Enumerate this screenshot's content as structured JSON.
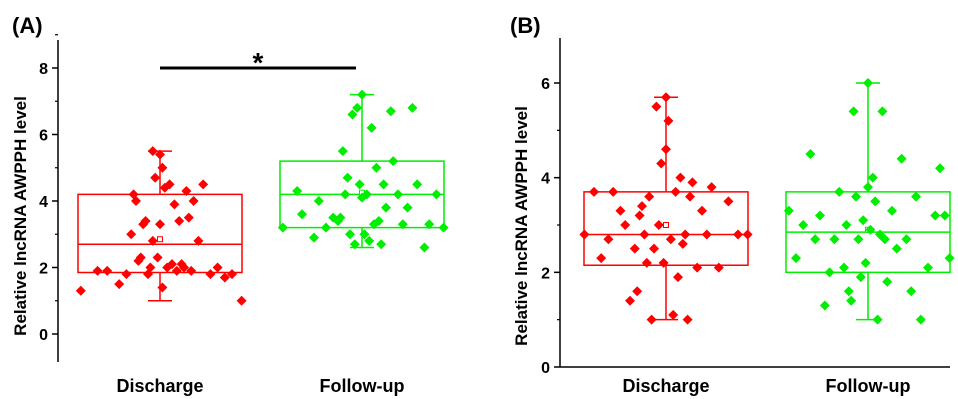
{
  "chart_data": [
    {
      "type": "box",
      "panel_label": "(A)",
      "title": "",
      "xlabel": "",
      "ylabel": "Relative lncRNA AWPPH level",
      "ylim": [
        -0.6,
        9
      ],
      "yticks": [
        0,
        2,
        4,
        6,
        8
      ],
      "categories": [
        "Discharge",
        "Follow-up"
      ],
      "significance": {
        "between": [
          0,
          1
        ],
        "y": 8.0,
        "label": "*"
      },
      "series": [
        {
          "category": "Discharge",
          "color": "#ff0000",
          "box": {
            "min": 1.0,
            "q1": 1.85,
            "median": 2.7,
            "q3": 4.2,
            "max": 5.5,
            "mean": 2.85
          },
          "points": [
            [
              -0.33,
              1.3
            ],
            [
              -0.26,
              1.9
            ],
            [
              -0.22,
              1.9
            ],
            [
              -0.17,
              1.5
            ],
            [
              -0.14,
              1.8
            ],
            [
              -0.12,
              3.0
            ],
            [
              -0.11,
              4.2
            ],
            [
              -0.1,
              4.0
            ],
            [
              -0.09,
              2.2
            ],
            [
              -0.08,
              2.3
            ],
            [
              -0.07,
              3.3
            ],
            [
              -0.06,
              3.4
            ],
            [
              -0.05,
              1.8
            ],
            [
              -0.04,
              2.0
            ],
            [
              -0.03,
              5.5
            ],
            [
              -0.02,
              4.7
            ],
            [
              -0.01,
              2.3
            ],
            [
              0.0,
              5.4
            ],
            [
              0.0,
              3.3
            ],
            [
              0.01,
              1.4
            ],
            [
              0.02,
              4.4
            ],
            [
              0.03,
              2.0
            ],
            [
              0.04,
              4.5
            ],
            [
              0.05,
              2.1
            ],
            [
              0.06,
              3.9
            ],
            [
              0.07,
              1.9
            ],
            [
              0.08,
              3.4
            ],
            [
              0.09,
              2.1
            ],
            [
              0.1,
              2.0
            ],
            [
              0.11,
              4.3
            ],
            [
              0.12,
              3.5
            ],
            [
              0.13,
              1.9
            ],
            [
              0.14,
              4.0
            ],
            [
              0.16,
              2.8
            ],
            [
              0.18,
              4.5
            ],
            [
              0.21,
              1.8
            ],
            [
              0.24,
              2.0
            ],
            [
              0.27,
              1.7
            ],
            [
              0.3,
              1.8
            ],
            [
              0.34,
              1.0
            ],
            [
              -0.03,
              2.8
            ],
            [
              0.01,
              5.0
            ]
          ]
        },
        {
          "category": "Follow-up",
          "color": "#00ee00",
          "box": {
            "min": 2.6,
            "q1": 3.2,
            "median": 4.2,
            "q3": 5.2,
            "max": 7.2,
            "mean": 4.25
          },
          "points": [
            [
              -0.33,
              3.2
            ],
            [
              -0.27,
              4.3
            ],
            [
              -0.25,
              3.6
            ],
            [
              -0.2,
              2.9
            ],
            [
              -0.18,
              4.0
            ],
            [
              -0.15,
              3.2
            ],
            [
              -0.12,
              3.5
            ],
            [
              -0.1,
              3.4
            ],
            [
              -0.08,
              5.5
            ],
            [
              -0.07,
              4.2
            ],
            [
              -0.06,
              4.7
            ],
            [
              -0.05,
              3.0
            ],
            [
              -0.04,
              6.6
            ],
            [
              -0.03,
              2.7
            ],
            [
              -0.02,
              6.8
            ],
            [
              -0.01,
              4.5
            ],
            [
              0.0,
              7.2
            ],
            [
              0.0,
              4.1
            ],
            [
              0.01,
              3.0
            ],
            [
              0.02,
              4.2
            ],
            [
              0.03,
              2.8
            ],
            [
              0.04,
              6.2
            ],
            [
              0.05,
              3.3
            ],
            [
              0.06,
              5.0
            ],
            [
              0.07,
              3.4
            ],
            [
              0.08,
              2.7
            ],
            [
              0.09,
              4.5
            ],
            [
              0.1,
              3.8
            ],
            [
              0.12,
              6.7
            ],
            [
              0.13,
              5.2
            ],
            [
              0.15,
              4.2
            ],
            [
              0.17,
              3.3
            ],
            [
              0.19,
              3.8
            ],
            [
              0.21,
              6.8
            ],
            [
              0.23,
              4.5
            ],
            [
              0.26,
              2.6
            ],
            [
              0.28,
              3.3
            ],
            [
              0.31,
              4.2
            ],
            [
              0.34,
              3.2
            ],
            [
              -0.09,
              3.5
            ]
          ]
        }
      ]
    },
    {
      "type": "box",
      "panel_label": "(B)",
      "title": "",
      "xlabel": "",
      "ylabel": "Relative lncRNA AWPPH level",
      "ylim": [
        0,
        7
      ],
      "yticks": [
        0,
        2,
        4,
        6
      ],
      "categories": [
        "Discharge",
        "Follow-up"
      ],
      "series": [
        {
          "category": "Discharge",
          "color": "#ff0000",
          "box": {
            "min": 1.0,
            "q1": 2.15,
            "median": 2.8,
            "q3": 3.7,
            "max": 5.7,
            "mean": 3.0
          },
          "points": [
            [
              -0.34,
              2.8
            ],
            [
              -0.3,
              3.7
            ],
            [
              -0.27,
              2.3
            ],
            [
              -0.24,
              2.7
            ],
            [
              -0.22,
              3.7
            ],
            [
              -0.19,
              3.3
            ],
            [
              -0.17,
              3.0
            ],
            [
              -0.15,
              1.4
            ],
            [
              -0.13,
              2.5
            ],
            [
              -0.12,
              1.6
            ],
            [
              -0.1,
              3.4
            ],
            [
              -0.09,
              2.8
            ],
            [
              -0.08,
              2.2
            ],
            [
              -0.07,
              3.6
            ],
            [
              -0.06,
              1.0
            ],
            [
              -0.05,
              2.5
            ],
            [
              -0.04,
              5.5
            ],
            [
              -0.03,
              3.0
            ],
            [
              -0.02,
              4.3
            ],
            [
              -0.01,
              2.2
            ],
            [
              0.0,
              5.7
            ],
            [
              0.0,
              4.6
            ],
            [
              0.01,
              5.2
            ],
            [
              0.02,
              2.7
            ],
            [
              0.03,
              1.1
            ],
            [
              0.04,
              3.7
            ],
            [
              0.05,
              1.9
            ],
            [
              0.06,
              4.0
            ],
            [
              0.07,
              2.6
            ],
            [
              0.08,
              2.8
            ],
            [
              0.09,
              1.0
            ],
            [
              0.1,
              3.6
            ],
            [
              0.11,
              3.9
            ],
            [
              0.13,
              2.1
            ],
            [
              0.15,
              3.3
            ],
            [
              0.17,
              2.8
            ],
            [
              0.19,
              3.8
            ],
            [
              0.22,
              2.1
            ],
            [
              0.26,
              3.5
            ],
            [
              0.3,
              2.8
            ],
            [
              0.34,
              2.8
            ],
            [
              -0.11,
              3.2
            ]
          ]
        },
        {
          "category": "Follow-up",
          "color": "#00ee00",
          "box": {
            "min": 1.0,
            "q1": 2.0,
            "median": 2.85,
            "q3": 3.7,
            "max": 6.0,
            "mean": 2.9
          },
          "points": [
            [
              -0.33,
              3.3
            ],
            [
              -0.3,
              2.3
            ],
            [
              -0.27,
              3.0
            ],
            [
              -0.24,
              4.5
            ],
            [
              -0.22,
              2.7
            ],
            [
              -0.2,
              3.2
            ],
            [
              -0.18,
              1.3
            ],
            [
              -0.16,
              2.0
            ],
            [
              -0.14,
              2.7
            ],
            [
              -0.12,
              3.7
            ],
            [
              -0.1,
              2.1
            ],
            [
              -0.09,
              3.0
            ],
            [
              -0.08,
              1.6
            ],
            [
              -0.07,
              1.4
            ],
            [
              -0.06,
              5.4
            ],
            [
              -0.05,
              3.6
            ],
            [
              -0.04,
              2.7
            ],
            [
              -0.03,
              1.9
            ],
            [
              -0.02,
              3.1
            ],
            [
              -0.01,
              2.2
            ],
            [
              0.0,
              6.0
            ],
            [
              0.0,
              3.8
            ],
            [
              0.01,
              2.9
            ],
            [
              0.02,
              4.0
            ],
            [
              0.03,
              3.5
            ],
            [
              0.04,
              1.0
            ],
            [
              0.05,
              2.8
            ],
            [
              0.06,
              5.4
            ],
            [
              0.07,
              2.7
            ],
            [
              0.08,
              1.8
            ],
            [
              0.1,
              3.3
            ],
            [
              0.12,
              2.5
            ],
            [
              0.14,
              4.4
            ],
            [
              0.16,
              2.7
            ],
            [
              0.18,
              1.6
            ],
            [
              0.2,
              3.6
            ],
            [
              0.22,
              1.0
            ],
            [
              0.25,
              2.1
            ],
            [
              0.28,
              3.2
            ],
            [
              0.3,
              4.2
            ],
            [
              0.32,
              3.2
            ],
            [
              0.34,
              2.3
            ]
          ]
        }
      ]
    }
  ]
}
